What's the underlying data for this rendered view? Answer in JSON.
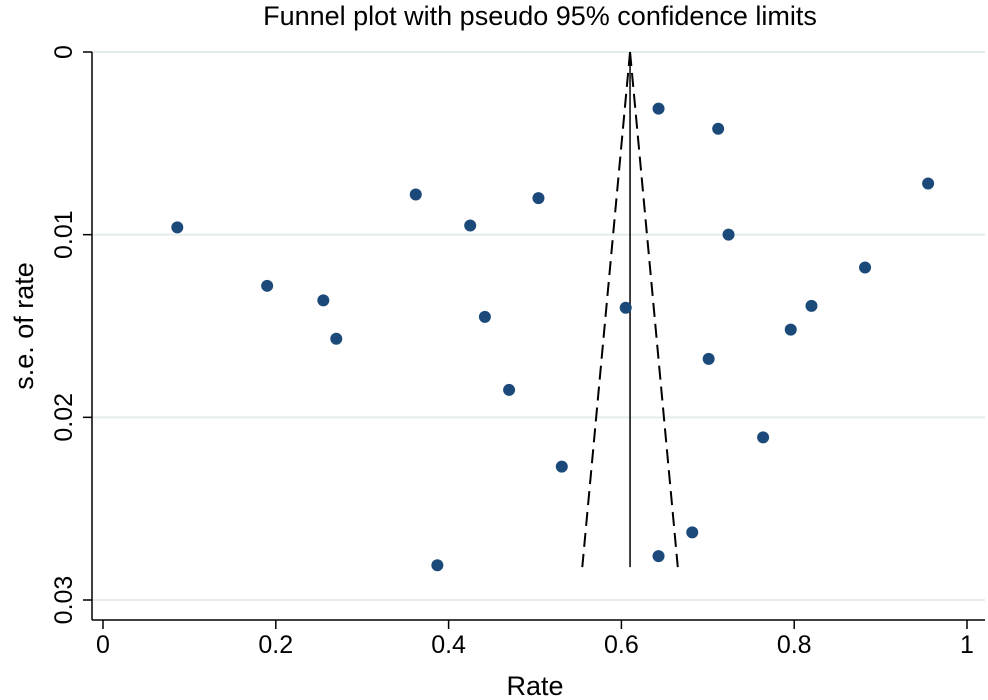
{
  "chart_data": {
    "type": "scatter",
    "title": "Funnel plot with pseudo 95% confidence limits",
    "xlabel": "Rate",
    "ylabel": "s.e. of rate",
    "xlim": [
      0,
      1
    ],
    "ylim": [
      0,
      0.03
    ],
    "y_reversed": true,
    "grid": true,
    "x_ticks": [
      0,
      0.2,
      0.4,
      0.6,
      0.8,
      1
    ],
    "x_tick_labels": [
      "0",
      "0.2",
      "0.4",
      "0.6",
      "0.8",
      "1"
    ],
    "y_ticks": [
      0,
      0.01,
      0.02,
      0.03
    ],
    "y_tick_labels": [
      "0",
      "0.01",
      "0.02",
      "0.03"
    ],
    "pooled_estimate": 0.61,
    "ci_max_se": 0.0282,
    "ci_z": 1.96,
    "point_color": "#1b4a7a",
    "points": [
      {
        "x": 0.086,
        "y": 0.0096
      },
      {
        "x": 0.19,
        "y": 0.0128
      },
      {
        "x": 0.255,
        "y": 0.0136
      },
      {
        "x": 0.27,
        "y": 0.0157
      },
      {
        "x": 0.362,
        "y": 0.0078
      },
      {
        "x": 0.387,
        "y": 0.0281
      },
      {
        "x": 0.425,
        "y": 0.0095
      },
      {
        "x": 0.442,
        "y": 0.0145
      },
      {
        "x": 0.47,
        "y": 0.0185
      },
      {
        "x": 0.504,
        "y": 0.008
      },
      {
        "x": 0.531,
        "y": 0.0227
      },
      {
        "x": 0.605,
        "y": 0.014
      },
      {
        "x": 0.643,
        "y": 0.0031
      },
      {
        "x": 0.643,
        "y": 0.0276
      },
      {
        "x": 0.682,
        "y": 0.0263
      },
      {
        "x": 0.701,
        "y": 0.0168
      },
      {
        "x": 0.712,
        "y": 0.0042
      },
      {
        "x": 0.724,
        "y": 0.01
      },
      {
        "x": 0.764,
        "y": 0.0211
      },
      {
        "x": 0.796,
        "y": 0.0152
      },
      {
        "x": 0.82,
        "y": 0.0139
      },
      {
        "x": 0.882,
        "y": 0.0118
      },
      {
        "x": 0.955,
        "y": 0.0072
      }
    ]
  }
}
